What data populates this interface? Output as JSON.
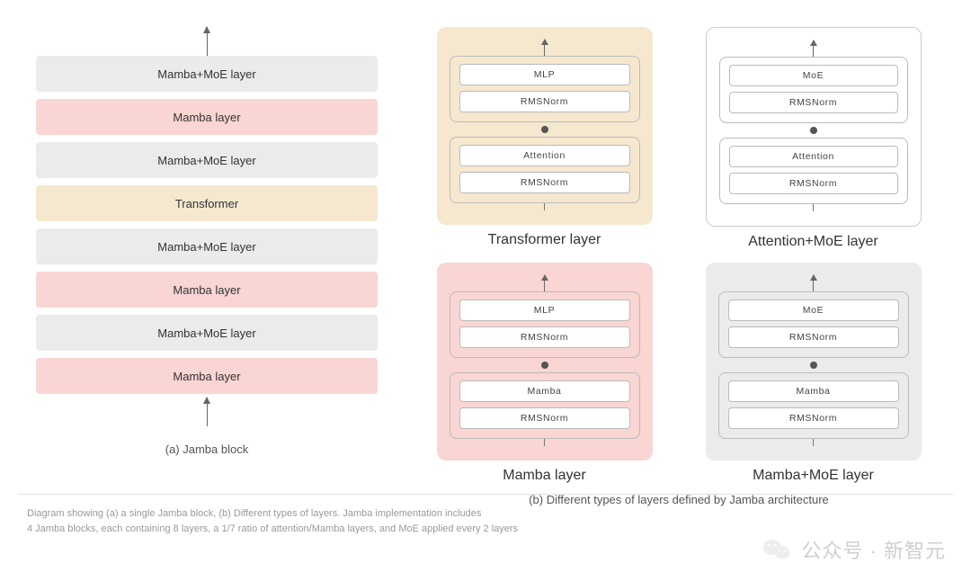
{
  "colors": {
    "gray": "#ebebeb",
    "pink": "#f9d5d3",
    "cream": "#f5e8cf",
    "border": "#bbbbbb",
    "text": "#333333",
    "arrow": "#666666",
    "rule": "#e2e2e2",
    "footnote": "#999999",
    "watermark": "#cfcfcf",
    "white": "#ffffff"
  },
  "typography": {
    "layer_label_fontsize_pt": 10,
    "sublayer_label_fontsize_pt": 8,
    "block_title_fontsize_pt": 12,
    "caption_fontsize_pt": 10,
    "footnote_fontsize_pt": 8,
    "watermark_fontsize_pt": 16
  },
  "jamba_stack": {
    "caption": "(a) Jamba block",
    "layers": [
      {
        "label": "Mamba+MoE layer",
        "color": "gray"
      },
      {
        "label": "Mamba layer",
        "color": "pink"
      },
      {
        "label": "Mamba+MoE layer",
        "color": "gray"
      },
      {
        "label": "Transformer",
        "color": "cream"
      },
      {
        "label": "Mamba+MoE layer",
        "color": "gray"
      },
      {
        "label": "Mamba layer",
        "color": "pink"
      },
      {
        "label": "Mamba+MoE layer",
        "color": "gray"
      },
      {
        "label": "Mamba layer",
        "color": "pink"
      }
    ]
  },
  "layer_types": {
    "caption": "(b) Different types of layers defined by Jamba architecture",
    "cards": [
      {
        "title": "Transformer layer",
        "bg": "cream",
        "top_group": [
          "MLP",
          "RMSNorm"
        ],
        "bottom_group": [
          "Attention",
          "RMSNorm"
        ]
      },
      {
        "title": "Attention+MoE layer",
        "bg": "outline",
        "top_group": [
          "MoE",
          "RMSNorm"
        ],
        "bottom_group": [
          "Attention",
          "RMSNorm"
        ]
      },
      {
        "title": "Mamba layer",
        "bg": "pink",
        "top_group": [
          "MLP",
          "RMSNorm"
        ],
        "bottom_group": [
          "Mamba",
          "RMSNorm"
        ]
      },
      {
        "title": "Mamba+MoE layer",
        "bg": "gray",
        "top_group": [
          "MoE",
          "RMSNorm"
        ],
        "bottom_group": [
          "Mamba",
          "RMSNorm"
        ]
      }
    ]
  },
  "footnote": {
    "line1": "Diagram showing (a) a single Jamba block, (b) Different types of layers. Jamba implementation includes",
    "line2": "4 Jamba blocks, each containing 8 layers, a 1/7 ratio of attention/Mamba layers, and MoE applied every 2 layers"
  },
  "watermark": {
    "text": "公众号 · 新智元"
  }
}
